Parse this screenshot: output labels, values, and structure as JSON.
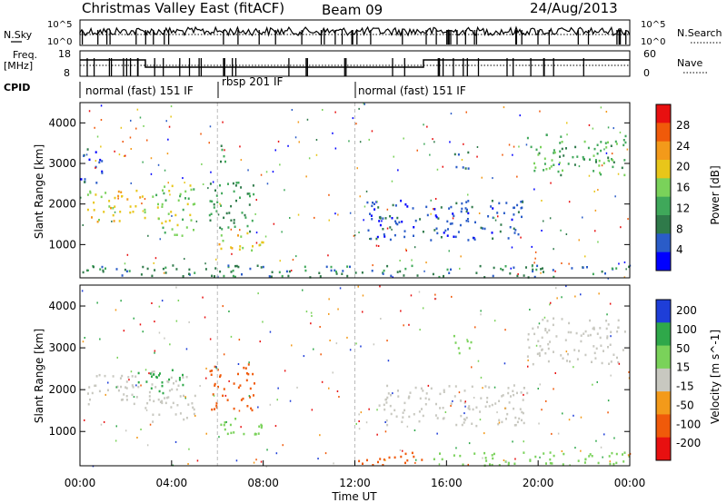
{
  "header": {
    "title": "Christmas Valley East (fitACF)",
    "beam": "Beam 09",
    "date": "24/Aug/2013"
  },
  "side_labels": {
    "nsky": "N.Sky",
    "freq_line1": "Freq.",
    "freq_line2": "[MHz]",
    "cpid": "CPID",
    "nsearch": "N.Search",
    "nave": "Nave"
  },
  "status_axes": {
    "noise_left_ticks": [
      "10^5",
      "10^0"
    ],
    "noise_right_ticks": [
      "10^5",
      "10^0"
    ],
    "freq_left_ticks": [
      "18",
      "8"
    ],
    "nave_right_ticks": [
      "60",
      "0"
    ]
  },
  "cpid_segments": [
    {
      "label": "normal (fast) 151 IF",
      "start_hr": 0.0,
      "end_hr": 6.0
    },
    {
      "label": "rbsp 201 IF",
      "start_hr": 6.0,
      "end_hr": 12.0
    },
    {
      "label": "normal (fast) 151 IF",
      "start_hr": 12.0,
      "end_hr": 24.0
    }
  ],
  "x_axis": {
    "label": "Time UT",
    "ticks": [
      "00:00",
      "04:00",
      "08:00",
      "12:00",
      "16:00",
      "20:00",
      "00:00"
    ]
  },
  "colors": {
    "power": [
      "#0000ff",
      "#2a5cc8",
      "#2f7a4a",
      "#3fa85a",
      "#7ad25a",
      "#e8c61a",
      "#f39a1a",
      "#f05a0a",
      "#e81010"
    ],
    "velocity": [
      "#e81010",
      "#f05a0a",
      "#f39a1a",
      "#c8c8c0",
      "#7ad25a",
      "#2fa84a",
      "#1e3ed8"
    ]
  },
  "chart_data": [
    {
      "type": "heatmap",
      "ylabel": "Slant Range [km]",
      "xlabel": "Time UT",
      "ylim": [
        180,
        4500
      ],
      "xlim": [
        0,
        24
      ],
      "yticks": [
        "1000",
        "2000",
        "3000",
        "4000"
      ],
      "xticks": [
        "00:00",
        "04:00",
        "08:00",
        "12:00",
        "16:00",
        "20:00",
        "00:00"
      ],
      "colorbar": {
        "label": "Power [dB]",
        "ticks": [
          "4",
          "8",
          "12",
          "16",
          "20",
          "24",
          "28"
        ],
        "range": [
          0,
          32
        ]
      },
      "regions": [
        {
          "t0": 0.3,
          "t1": 2.9,
          "r0": 1550,
          "r1": 2350,
          "v": 22
        },
        {
          "t0": 3.0,
          "t1": 5.0,
          "r0": 1200,
          "r1": 2450,
          "v": 18
        },
        {
          "t0": 5.6,
          "t1": 7.6,
          "r0": 1300,
          "r1": 2600,
          "v": 12
        },
        {
          "t0": 6.0,
          "t1": 8.0,
          "r0": 850,
          "r1": 1350,
          "v": 22
        },
        {
          "t0": 0.0,
          "t1": 1.0,
          "r0": 2500,
          "r1": 3400,
          "v": 6
        },
        {
          "t0": 6.0,
          "t1": 6.6,
          "r0": 3000,
          "r1": 3500,
          "v": 12
        },
        {
          "t0": 12.5,
          "t1": 19.5,
          "r0": 1100,
          "r1": 2100,
          "v": 6
        },
        {
          "t0": 16.3,
          "t1": 17.1,
          "r0": 2800,
          "r1": 3300,
          "v": 8
        },
        {
          "t0": 19.5,
          "t1": 23.8,
          "r0": 2700,
          "r1": 3700,
          "v": 14
        },
        {
          "t0": 0.0,
          "t1": 24.0,
          "r0": 180,
          "r1": 480,
          "v": 10
        }
      ]
    },
    {
      "type": "heatmap",
      "ylabel": "Slant Range [km]",
      "xlabel": "Time UT",
      "ylim": [
        180,
        4500
      ],
      "xlim": [
        0,
        24
      ],
      "yticks": [
        "1000",
        "2000",
        "3000",
        "4000"
      ],
      "xticks": [
        "00:00",
        "04:00",
        "08:00",
        "12:00",
        "16:00",
        "20:00",
        "00:00"
      ],
      "colorbar": {
        "label": "Velocity [m s^-1]",
        "ticks": [
          "200",
          "100",
          "50",
          "15",
          "-15",
          "-50",
          "-100",
          "-200"
        ],
        "range": [
          -250,
          250
        ]
      },
      "regions": [
        {
          "t0": 0.3,
          "t1": 2.9,
          "r0": 1550,
          "r1": 2350,
          "v": 0
        },
        {
          "t0": 3.0,
          "t1": 5.0,
          "r0": 1200,
          "r1": 2450,
          "v": 0
        },
        {
          "t0": 2.5,
          "t1": 4.5,
          "r0": 1900,
          "r1": 2500,
          "v": 80
        },
        {
          "t0": 5.6,
          "t1": 7.6,
          "r0": 1500,
          "r1": 2600,
          "v": -60
        },
        {
          "t0": 6.0,
          "t1": 8.0,
          "r0": 850,
          "r1": 1350,
          "v": 40
        },
        {
          "t0": 12.0,
          "t1": 15.0,
          "r0": 180,
          "r1": 500,
          "v": -60
        },
        {
          "t0": 15.0,
          "t1": 24.0,
          "r0": 180,
          "r1": 500,
          "v": 40
        },
        {
          "t0": 13.0,
          "t1": 19.5,
          "r0": 1100,
          "r1": 2100,
          "v": 0
        },
        {
          "t0": 16.3,
          "t1": 17.1,
          "r0": 2800,
          "r1": 3300,
          "v": 30
        },
        {
          "t0": 19.5,
          "t1": 23.8,
          "r0": 2600,
          "r1": 3700,
          "v": 0
        }
      ]
    }
  ]
}
